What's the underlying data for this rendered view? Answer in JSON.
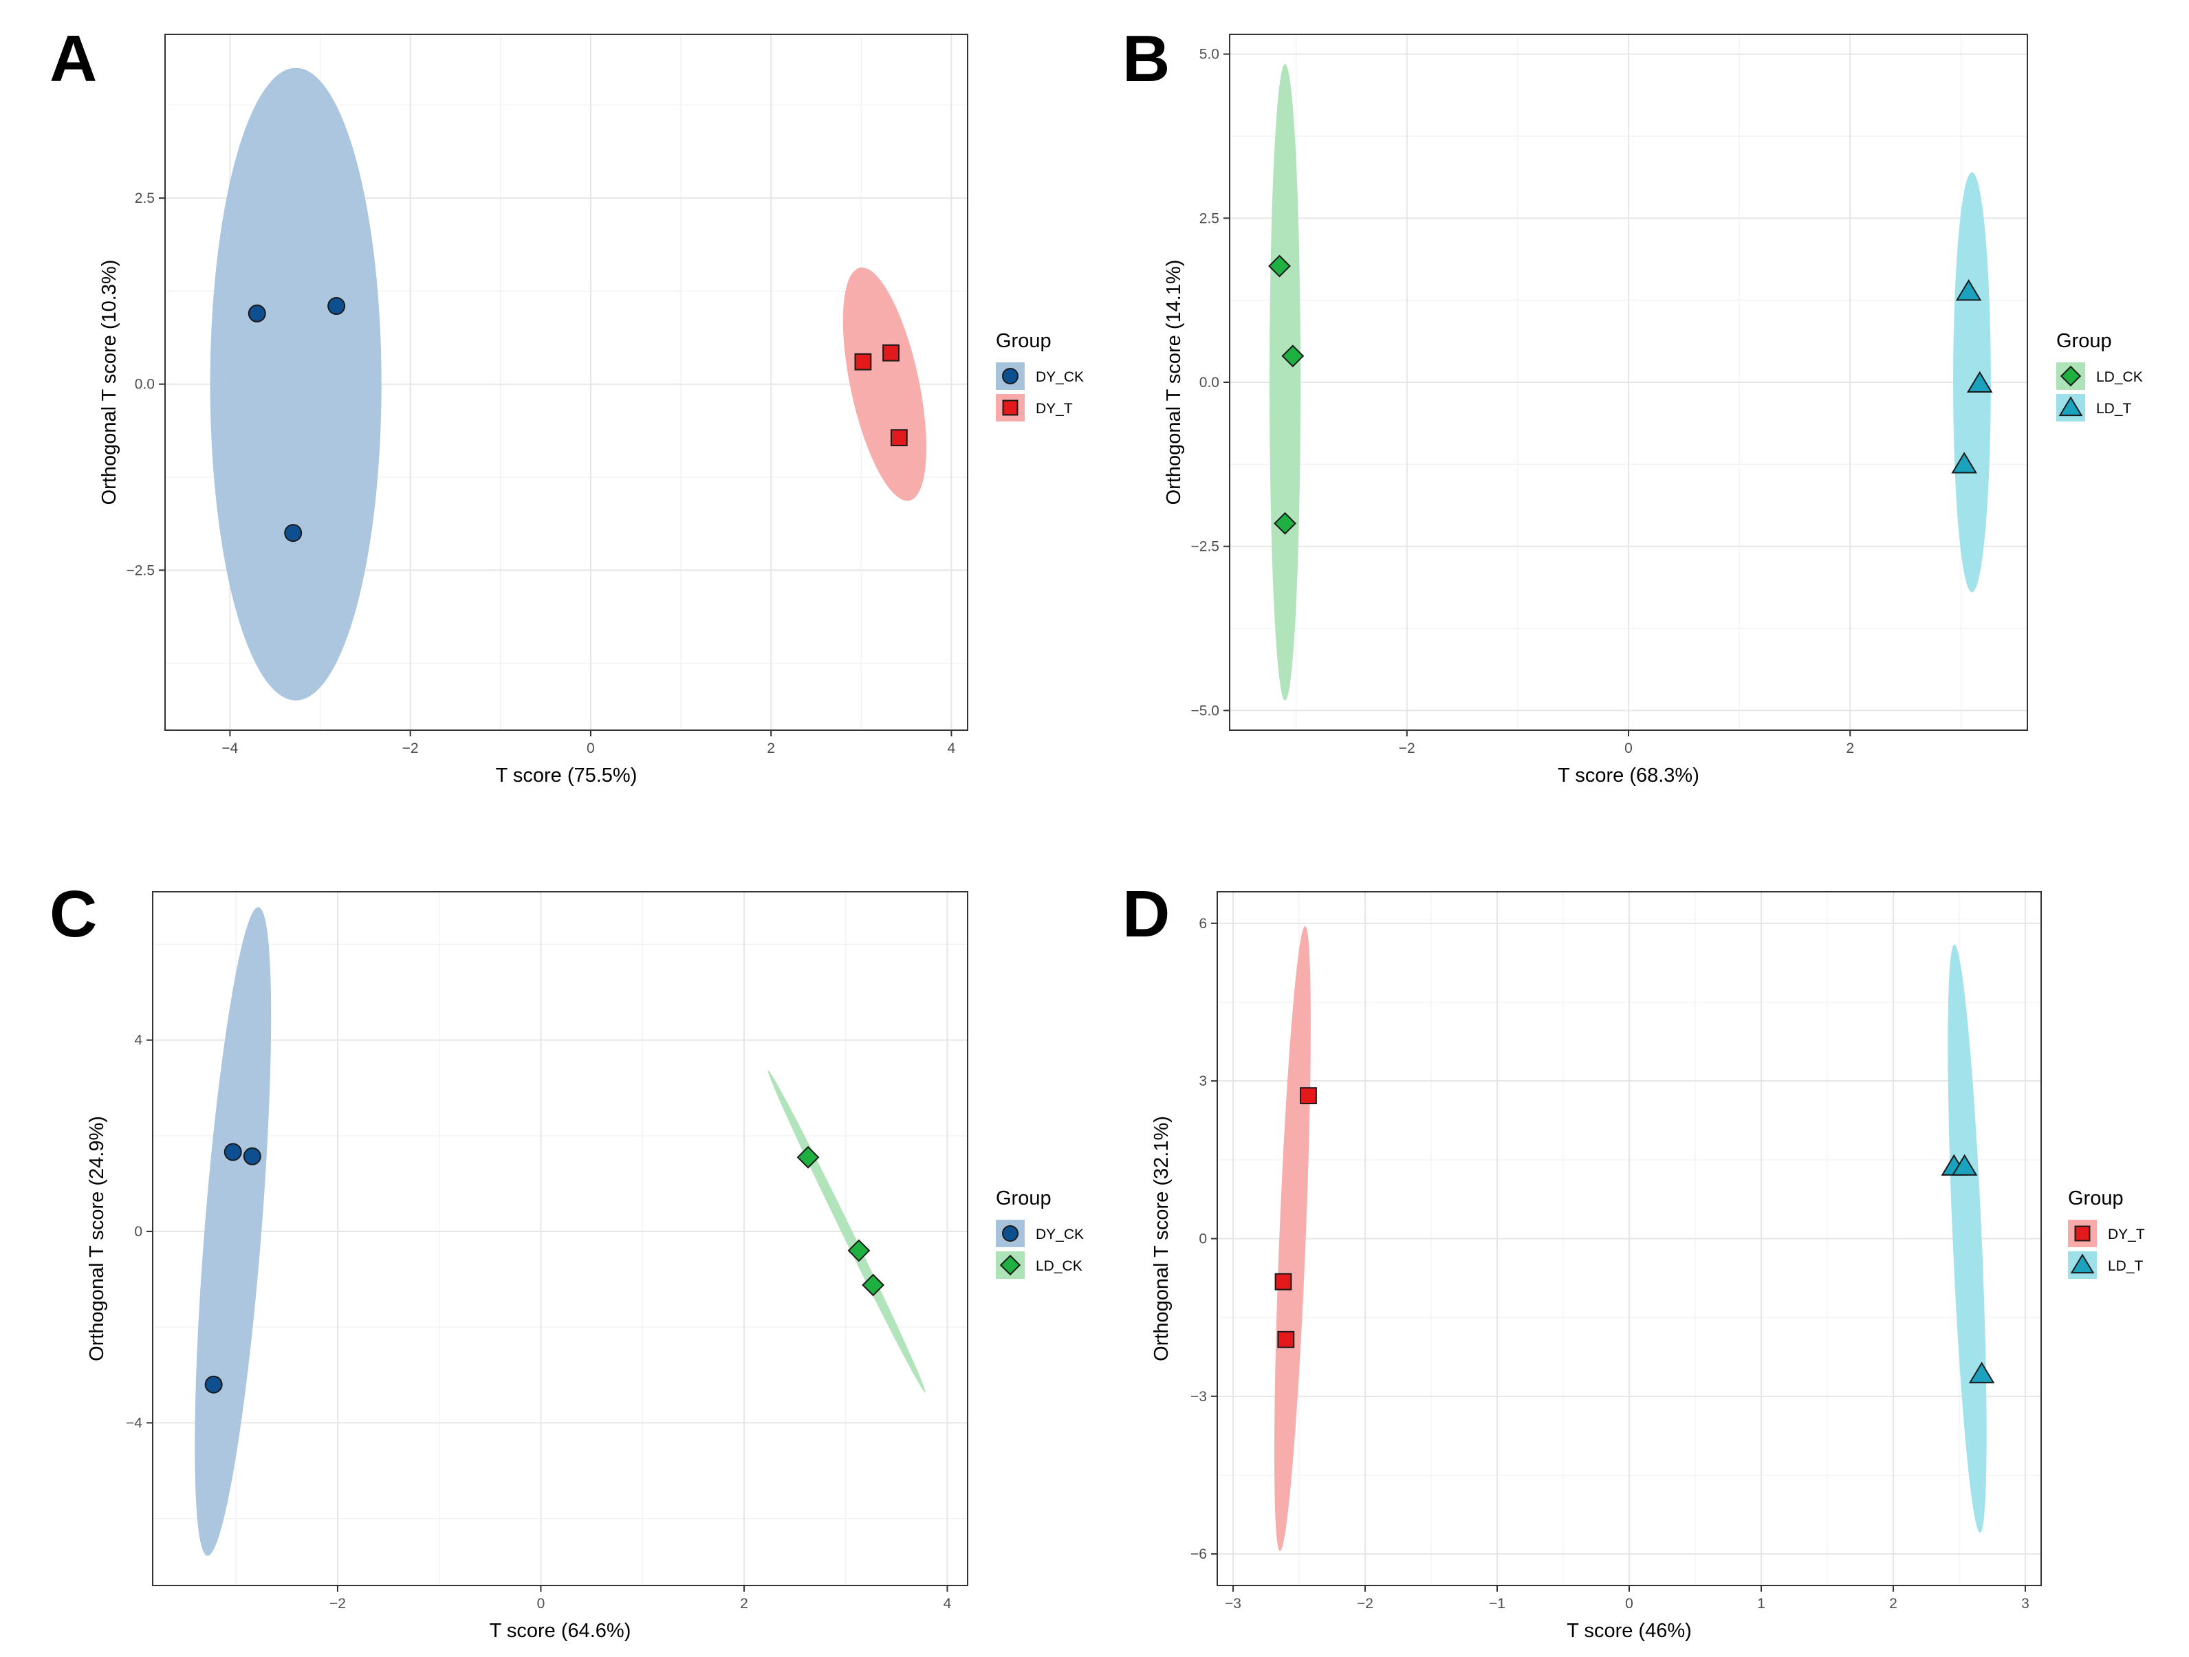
{
  "chart_data": [
    {
      "type": "scatter",
      "panel": "A",
      "xlabel": "T score (75.5%)",
      "ylabel": "Orthogonal T score (10.3%)",
      "xlim": [
        -4.72,
        4.18
      ],
      "ylim": [
        -4.65,
        4.7
      ],
      "xticks": [
        -4,
        -2,
        0,
        2,
        4
      ],
      "yticks": [
        -2.5,
        0,
        2.5
      ],
      "ytick_labels": [
        "−2.5",
        "0.0",
        "2.5"
      ],
      "xtick_labels": [
        "−4",
        "−2",
        "0",
        "2",
        "4"
      ],
      "grid": true,
      "legend": {
        "title": "Group",
        "placement": "right"
      },
      "series": [
        {
          "name": "DY_CK",
          "shape": "circle",
          "color": "#0d4f8f",
          "ellipse_color": "#a7c3dc",
          "points": [
            [
              -3.7,
              0.95
            ],
            [
              -2.82,
              1.05
            ],
            [
              -3.3,
              -2.0
            ]
          ],
          "ellipse": {
            "cx": -3.27,
            "cy": 0.0,
            "rx": 0.95,
            "ry": 4.25,
            "angle": 0
          }
        },
        {
          "name": "DY_T",
          "shape": "square",
          "color": "#e4191c",
          "ellipse_color": "#f8a9a9",
          "points": [
            [
              3.02,
              0.3
            ],
            [
              3.33,
              0.42
            ],
            [
              3.42,
              -0.72
            ]
          ],
          "ellipse": {
            "cx": 3.26,
            "cy": 0.0,
            "rx": 0.38,
            "ry": 1.6,
            "angle": -12
          }
        }
      ]
    },
    {
      "type": "scatter",
      "panel": "B",
      "xlabel": "T score (68.3%)",
      "ylabel": "Orthogonal T score (14.1%)",
      "xlim": [
        -3.6,
        3.6
      ],
      "ylim": [
        -5.3,
        5.3
      ],
      "xticks": [
        -2,
        0,
        2
      ],
      "yticks": [
        -5,
        -2.5,
        0,
        2.5,
        5
      ],
      "ytick_labels": [
        "−5.0",
        "−2.5",
        "0.0",
        "2.5",
        "5.0"
      ],
      "xtick_labels": [
        "−2",
        "0",
        "2"
      ],
      "grid": true,
      "legend": {
        "title": "Group",
        "placement": "right"
      },
      "series": [
        {
          "name": "LD_CK",
          "shape": "diamond",
          "color": "#1eb040",
          "ellipse_color": "#aee3b8",
          "points": [
            [
              -3.15,
              1.77
            ],
            [
              -3.03,
              0.4
            ],
            [
              -3.1,
              -2.15
            ]
          ],
          "ellipse": {
            "cx": -3.1,
            "cy": 0.0,
            "rx": 0.14,
            "ry": 4.85,
            "angle": 0
          }
        },
        {
          "name": "LD_T",
          "shape": "triangle",
          "color": "#1aa2bf",
          "ellipse_color": "#9de0ea",
          "points": [
            [
              3.07,
              1.38
            ],
            [
              3.17,
              -0.02
            ],
            [
              3.03,
              -1.25
            ]
          ],
          "ellipse": {
            "cx": 3.1,
            "cy": 0.0,
            "rx": 0.17,
            "ry": 3.2,
            "angle": 0
          }
        }
      ]
    },
    {
      "type": "scatter",
      "panel": "C",
      "xlabel": "T score (64.6%)",
      "ylabel": "Orthogonal T score (24.9%)",
      "xlim": [
        -3.82,
        4.2
      ],
      "ylim": [
        -7.4,
        7.1
      ],
      "xticks": [
        -2,
        0,
        2,
        4
      ],
      "yticks": [
        -4,
        0,
        4
      ],
      "ytick_labels": [
        "−4",
        "0",
        "4"
      ],
      "xtick_labels": [
        "−2",
        "0",
        "2",
        "4"
      ],
      "grid": true,
      "legend": {
        "title": "Group",
        "placement": "right"
      },
      "series": [
        {
          "name": "DY_CK",
          "shape": "circle",
          "color": "#0d4f8f",
          "ellipse_color": "#a7c3dc",
          "points": [
            [
              -3.03,
              1.66
            ],
            [
              -2.84,
              1.57
            ],
            [
              -3.22,
              -3.2
            ]
          ],
          "ellipse": {
            "cx": -3.03,
            "cy": 0.0,
            "rx": 0.28,
            "ry": 6.8,
            "angle": 4.5
          }
        },
        {
          "name": "LD_CK",
          "shape": "diamond",
          "color": "#1eb040",
          "ellipse_color": "#aee3b8",
          "points": [
            [
              2.63,
              1.55
            ],
            [
              3.13,
              -0.4
            ],
            [
              3.27,
              -1.12
            ]
          ],
          "ellipse": {
            "cx": 3.01,
            "cy": 0.0,
            "rx": 0.05,
            "ry": 3.75,
            "angle": -26
          }
        }
      ]
    },
    {
      "type": "scatter",
      "panel": "D",
      "xlabel": "T score (46%)",
      "ylabel": "Orthogonal T score (32.1%)",
      "xlim": [
        -3.12,
        3.12
      ],
      "ylim": [
        -6.6,
        6.6
      ],
      "xticks": [
        -3,
        -2,
        -1,
        0,
        1,
        2,
        3
      ],
      "yticks": [
        -6,
        -3,
        0,
        3,
        6
      ],
      "ytick_labels": [
        "−6",
        "−3",
        "0",
        "3",
        "6"
      ],
      "xtick_labels": [
        "−3",
        "−2",
        "−1",
        "0",
        "1",
        "2",
        "3"
      ],
      "grid": true,
      "legend": {
        "title": "Group",
        "placement": "right"
      },
      "series": [
        {
          "name": "DY_T",
          "shape": "square",
          "color": "#e4191c",
          "ellipse_color": "#f8a9a9",
          "points": [
            [
              -2.43,
              2.72
            ],
            [
              -2.62,
              -0.82
            ],
            [
              -2.6,
              -1.92
            ]
          ],
          "ellipse": {
            "cx": -2.55,
            "cy": 0.0,
            "rx": 0.1,
            "ry": 5.95,
            "angle": 2.3
          }
        },
        {
          "name": "LD_T",
          "shape": "triangle",
          "color": "#1aa2bf",
          "ellipse_color": "#9de0ea",
          "points": [
            [
              2.46,
              1.37
            ],
            [
              2.54,
              1.37
            ],
            [
              2.67,
              -2.58
            ]
          ],
          "ellipse": {
            "cx": 2.56,
            "cy": 0.0,
            "rx": 0.11,
            "ry": 5.6,
            "angle": -2.5
          }
        }
      ]
    }
  ]
}
